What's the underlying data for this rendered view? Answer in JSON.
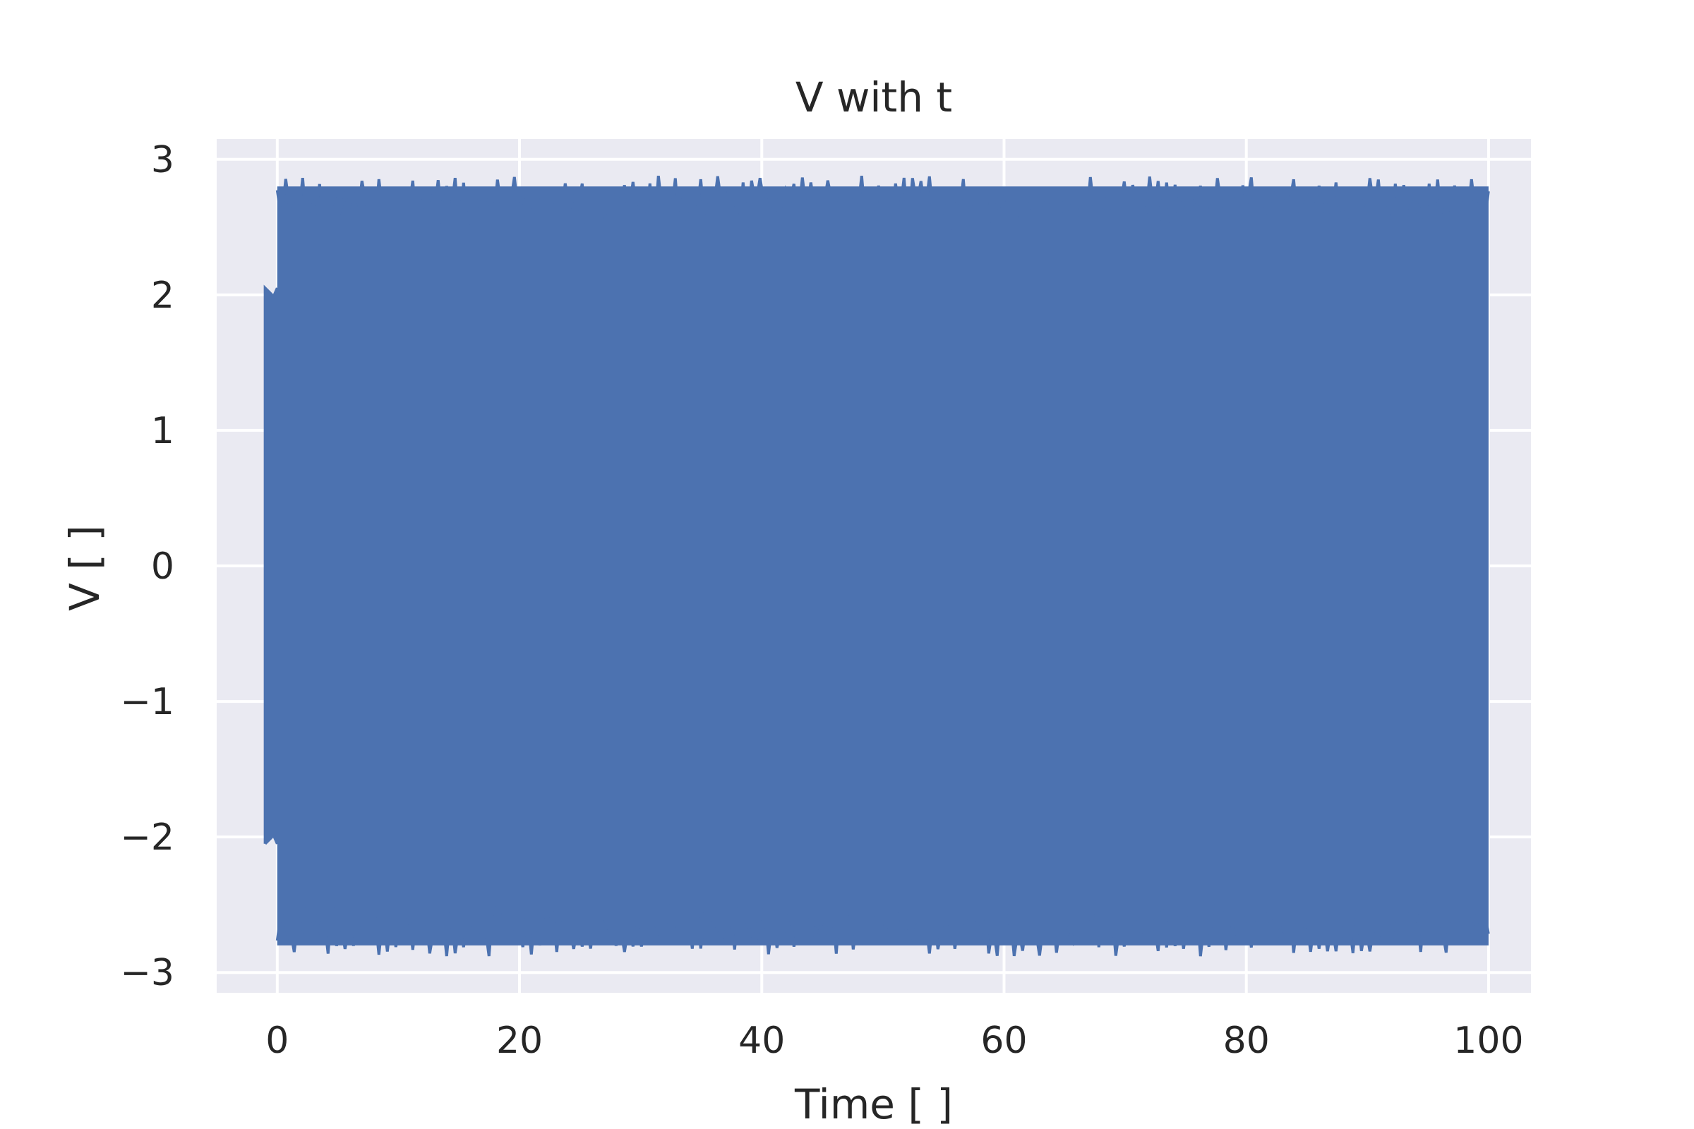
{
  "chart_data": {
    "type": "line",
    "title": "V with t",
    "xlabel": "Time [ ]",
    "ylabel": "V [ ]",
    "xlim": [
      -5,
      103.5
    ],
    "ylim": [
      -3.15,
      3.15
    ],
    "xticks": [
      0,
      20,
      40,
      60,
      80,
      100
    ],
    "yticks": [
      3,
      2,
      1,
      0,
      -1,
      -2,
      -3
    ],
    "xtick_labels": [
      "0",
      "20",
      "40",
      "60",
      "80",
      "100"
    ],
    "ytick_labels": [
      "3",
      "2",
      "1",
      "0",
      "−1",
      "−2",
      "−3"
    ],
    "grid": true,
    "background_color": "#eaeaf2",
    "grid_color": "#ffffff",
    "series": [
      {
        "color": "#4c72b0",
        "x_range": [
          -1,
          100
        ],
        "envelope_initial": 2.05,
        "envelope_max": 2.9,
        "description_values": {
          "t_start": -1,
          "t_end": 100,
          "amplitude_before_0": 2.05,
          "amplitude_after_0": 2.9
        }
      }
    ]
  }
}
